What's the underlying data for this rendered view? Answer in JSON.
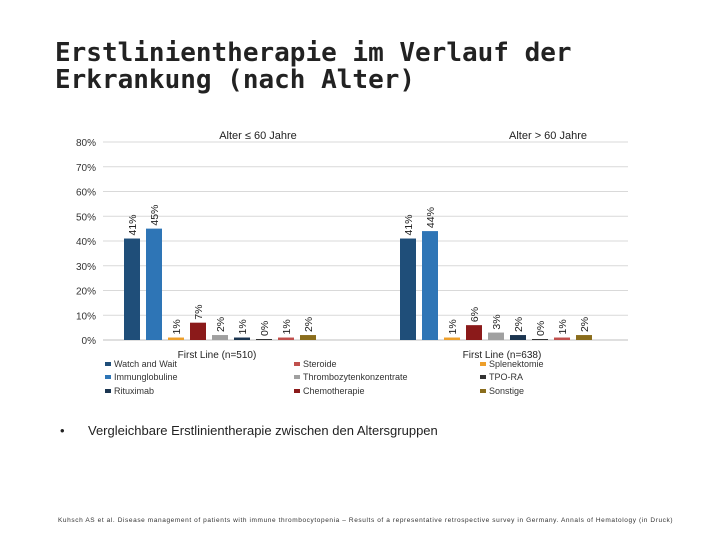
{
  "slide": {
    "title_line1": "Erstlinientherapie im Verlauf der",
    "title_line2": "Erkrankung (nach Alter)",
    "bullet_symbol": "•",
    "bullet_text": "Vergleichbare Erstlinientherapie zwischen den Altersgruppen",
    "citation": "Kuhsch AS et al. Disease management of patients with immune thrombocytopenia – Results of a representative retrospective survey in Germany. Annals of Hematology (in Druck)"
  },
  "chart_data": {
    "type": "bar",
    "panel_titles": [
      "Alter ≤ 60 Jahre",
      "Alter > 60 Jahre"
    ],
    "categories": [
      "First Line (n=510)",
      "First Line (n=638)"
    ],
    "series": [
      {
        "name": "Watch and Wait",
        "color": "#1f4e79",
        "values": [
          41,
          41
        ],
        "labels": [
          "41%",
          "41%"
        ]
      },
      {
        "name": "Immunglobuline",
        "color": "#2e75b6",
        "values": [
          45,
          44
        ],
        "labels": [
          "45%",
          "44%"
        ]
      },
      {
        "name": "Splenektomie",
        "color": "#ed9f2b",
        "values": [
          1,
          1
        ],
        "labels": [
          "1%",
          "1%"
        ]
      },
      {
        "name": "Chemotherapie",
        "color": "#8b1a1a",
        "values": [
          7,
          6
        ],
        "labels": [
          "7%",
          "6%"
        ]
      },
      {
        "name": "Thrombozytenkonzentrate",
        "color": "#a0a0a0",
        "values": [
          2,
          3
        ],
        "labels": [
          "2%",
          "3%"
        ]
      },
      {
        "name": "Rituximab",
        "color": "#1b3550",
        "values": [
          1,
          2
        ],
        "labels": [
          "1%",
          "2%"
        ]
      },
      {
        "name": "TPO-RA",
        "color": "#333333",
        "values": [
          0,
          0
        ],
        "labels": [
          "0%",
          "0%"
        ]
      },
      {
        "name": "Steroide",
        "color": "#c0504d",
        "values": [
          1,
          1
        ],
        "labels": [
          "1%",
          "1%"
        ]
      },
      {
        "name": "Sonstige",
        "color": "#8a6d1c",
        "values": [
          2,
          2
        ],
        "labels": [
          "2%",
          "2%"
        ]
      }
    ],
    "y_ticks": [
      "0%",
      "10%",
      "20%",
      "30%",
      "40%",
      "50%",
      "60%",
      "70%",
      "80%"
    ],
    "ylim": [
      0,
      80
    ],
    "grid": true,
    "legend": [
      [
        {
          "name": "Watch and Wait",
          "color": "#1f4e79"
        },
        {
          "name": "Immunglobuline",
          "color": "#2e75b6"
        },
        {
          "name": "Rituximab",
          "color": "#1b3550"
        }
      ],
      [
        {
          "name": "Steroide",
          "color": "#c0504d"
        },
        {
          "name": "Thrombozytenkonzentrate",
          "color": "#a0a0a0"
        },
        {
          "name": "Chemotherapie",
          "color": "#8b1a1a"
        }
      ],
      [
        {
          "name": "Splenektomie",
          "color": "#ed9f2b"
        },
        {
          "name": "TPO-RA",
          "color": "#333333"
        },
        {
          "name": "Sonstige",
          "color": "#8a6d1c"
        }
      ]
    ],
    "legend_position": "bottom"
  }
}
